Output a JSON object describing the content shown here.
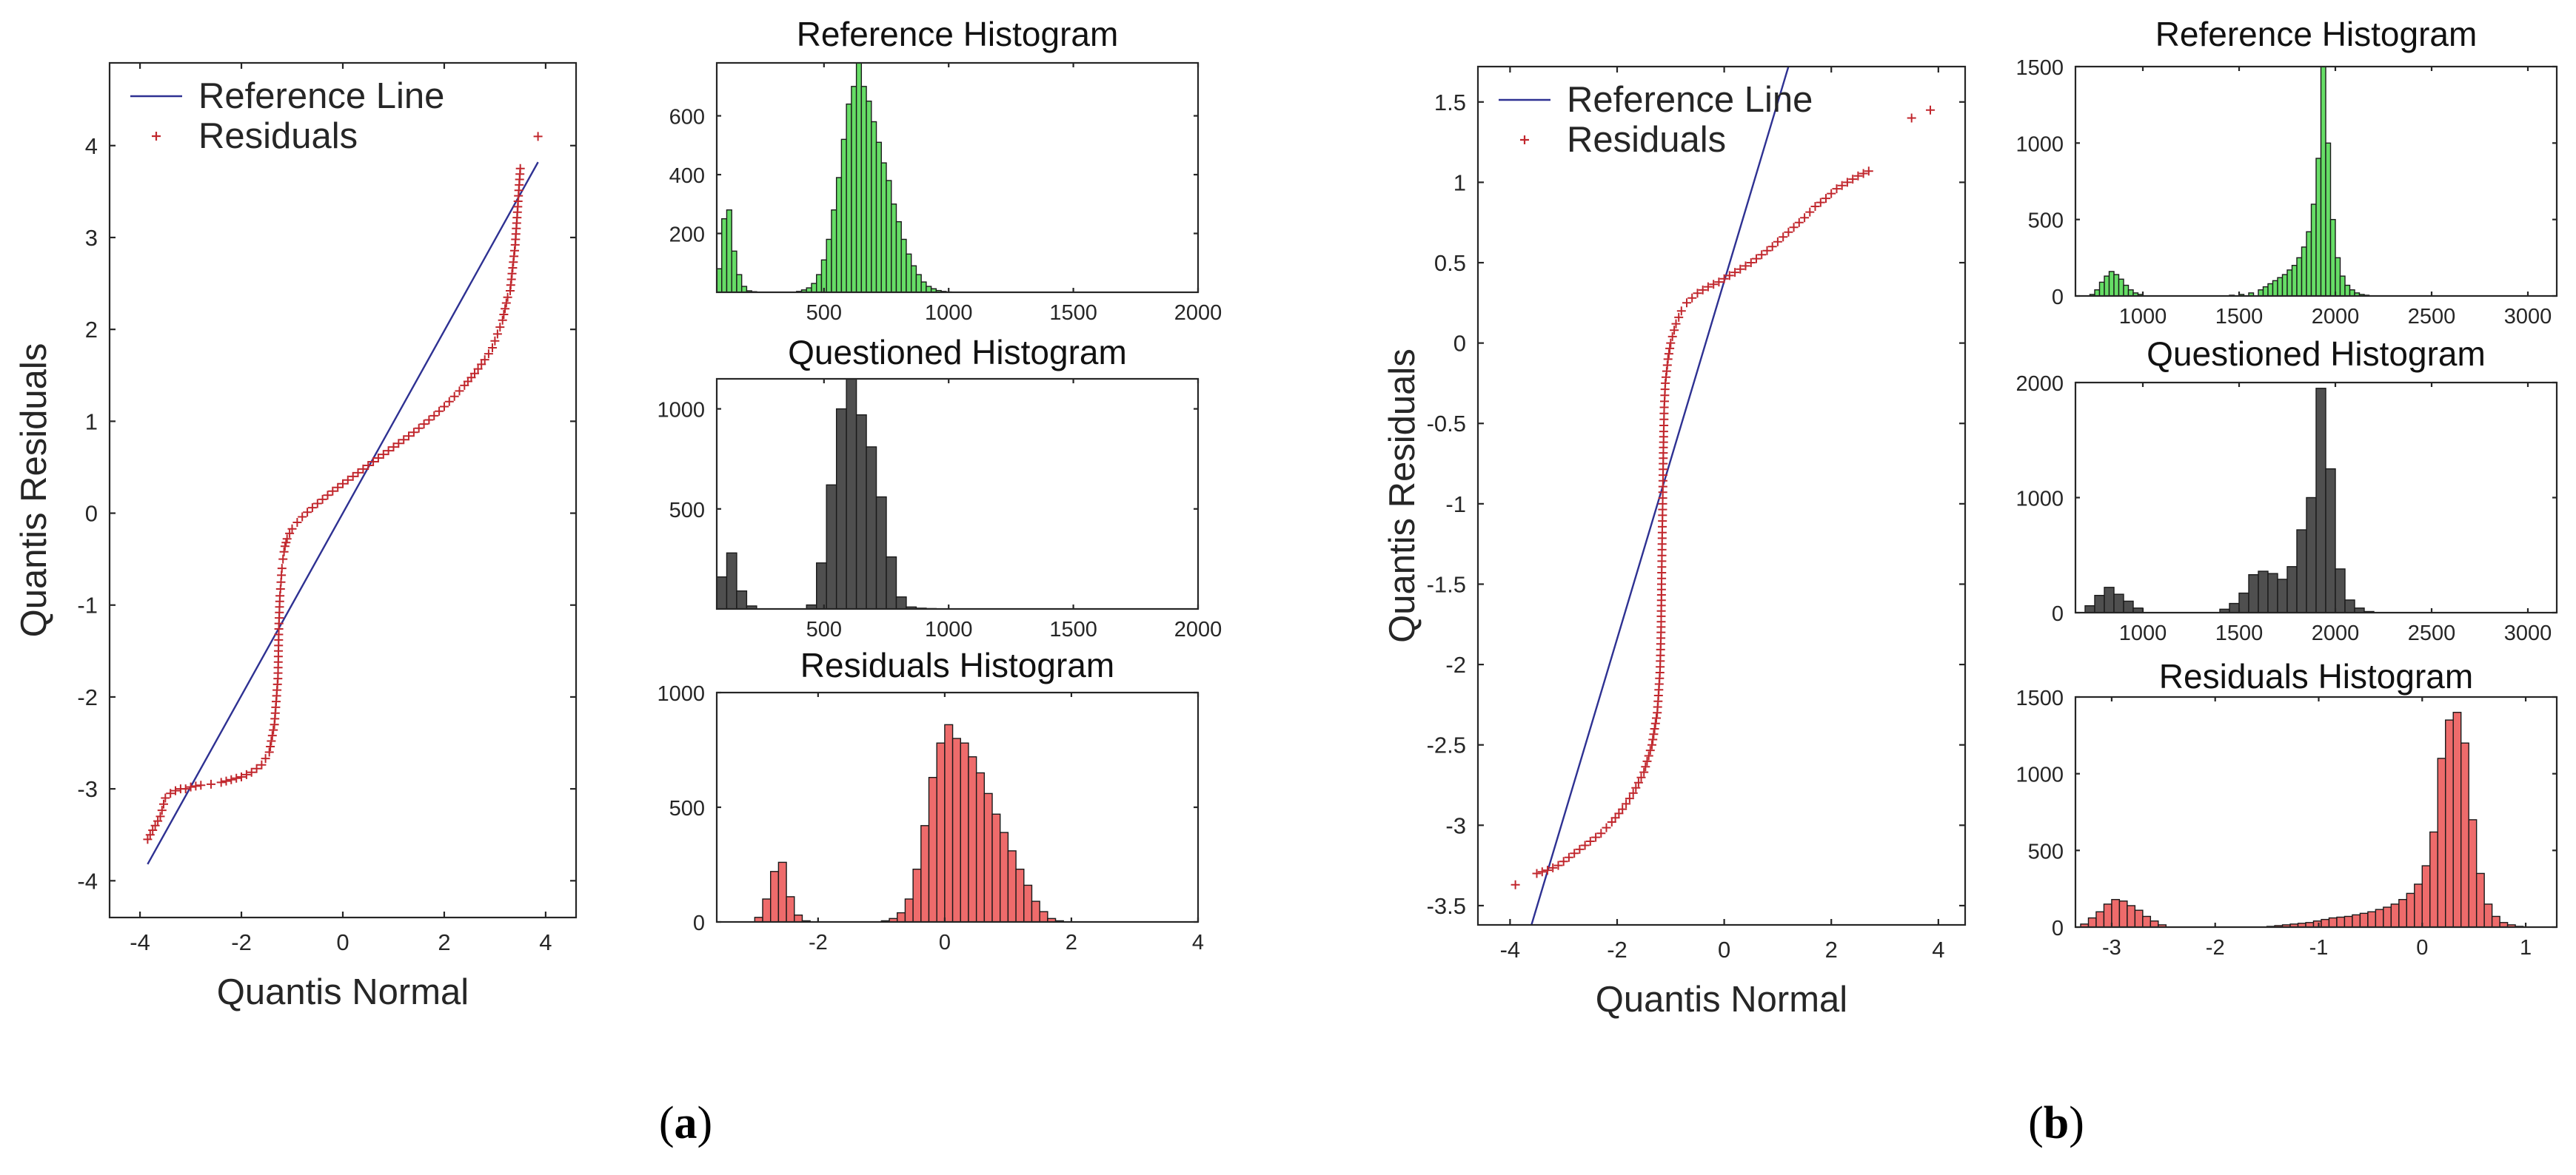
{
  "colors": {
    "reference_line": "#2e3192",
    "residual_marker": "#c1272d",
    "reference_hist": "#66dd66",
    "questioned_hist": "#4f4f4f",
    "residual_hist": "#ee6b6b",
    "bar_edge": "#1a1a1a"
  },
  "panel_labels": [
    {
      "open": "(",
      "letter": "a",
      "close": ")"
    },
    {
      "open": "(",
      "letter": "b",
      "close": ")"
    }
  ],
  "chart_data": [
    {
      "id": "a-qq",
      "type": "scatter",
      "xlabel": "Quantis Normal",
      "ylabel": "Quantis Residuals",
      "xlim": [
        -4.6,
        4.6
      ],
      "ylim": [
        -4.4,
        4.9
      ],
      "xticks": [
        -4,
        -2,
        0,
        2,
        4
      ],
      "yticks": [
        -4,
        -3,
        -2,
        -1,
        0,
        1,
        2,
        3,
        4
      ],
      "legend": {
        "position": "top-left",
        "entries": [
          "Reference Line",
          "Residuals"
        ]
      },
      "reference_line": {
        "x": [
          -3.85,
          3.85
        ],
        "y": [
          -3.82,
          3.82
        ]
      },
      "residuals": {
        "x": [
          -3.85,
          -3.6,
          -3.5,
          -3.4,
          -3.3,
          -3.2,
          -3.1,
          -3.0,
          -2.9,
          -2.8,
          -2.6,
          -2.4,
          -2.2,
          -2.0,
          -1.8,
          -1.6,
          -1.45,
          -1.35,
          -1.28,
          -1.26,
          -1.24,
          -1.22,
          -1.2,
          -1.18,
          -1.16,
          -1.14,
          -1.12,
          -1.1,
          -1.05,
          -1.0,
          -0.9,
          -0.8,
          -0.6,
          -0.4,
          -0.2,
          0.0,
          0.2,
          0.4,
          0.6,
          0.8,
          1.0,
          1.2,
          1.4,
          1.6,
          1.8,
          2.0,
          2.2,
          2.4,
          2.6,
          2.8,
          2.95,
          3.05,
          3.15,
          3.25,
          3.3,
          3.4,
          3.5,
          3.85
        ],
        "y": [
          -3.55,
          -3.3,
          -3.1,
          -3.05,
          -3.02,
          -3.0,
          -3.0,
          -2.98,
          -2.97,
          -2.96,
          -2.95,
          -2.93,
          -2.9,
          -2.87,
          -2.82,
          -2.74,
          -2.6,
          -2.3,
          -1.8,
          -1.2,
          -0.9,
          -0.75,
          -0.6,
          -0.5,
          -0.42,
          -0.36,
          -0.32,
          -0.28,
          -0.22,
          -0.17,
          -0.1,
          -0.04,
          0.06,
          0.15,
          0.24,
          0.32,
          0.4,
          0.48,
          0.56,
          0.64,
          0.72,
          0.8,
          0.88,
          0.97,
          1.06,
          1.16,
          1.27,
          1.39,
          1.52,
          1.67,
          1.8,
          1.95,
          2.1,
          2.35,
          2.42,
          2.92,
          3.75,
          4.1
        ]
      }
    },
    {
      "id": "a-ref-hist",
      "type": "bar",
      "title": "Reference Histogram",
      "xlim": [
        70,
        2000
      ],
      "ylim": [
        0,
        780
      ],
      "xticks": [
        500,
        1000,
        1500,
        2000
      ],
      "yticks": [
        200,
        400,
        600
      ],
      "bin_width": 20,
      "bins": [
        70,
        90,
        110,
        130,
        150,
        170,
        190,
        210,
        390,
        410,
        430,
        450,
        470,
        490,
        510,
        530,
        550,
        570,
        590,
        610,
        630,
        650,
        670,
        690,
        710,
        730,
        750,
        770,
        790,
        810,
        830,
        850,
        870,
        890,
        910,
        930,
        950,
        970,
        990
      ],
      "values": [
        80,
        250,
        280,
        140,
        60,
        20,
        5,
        2,
        3,
        8,
        15,
        30,
        60,
        110,
        180,
        280,
        390,
        520,
        640,
        700,
        780,
        700,
        650,
        580,
        510,
        440,
        380,
        300,
        240,
        180,
        130,
        90,
        60,
        35,
        20,
        12,
        6,
        3,
        1
      ],
      "color_key": "reference_hist"
    },
    {
      "id": "a-q-hist",
      "type": "bar",
      "title": "Questioned Histogram",
      "xlim": [
        70,
        2000
      ],
      "ylim": [
        0,
        1150
      ],
      "xticks": [
        500,
        1000,
        1500,
        2000
      ],
      "yticks": [
        500,
        1000
      ],
      "bin_width": 40,
      "bins": [
        70,
        110,
        150,
        190,
        430,
        470,
        510,
        550,
        590,
        630,
        670,
        710,
        750,
        790,
        830,
        870,
        910
      ],
      "values": [
        160,
        280,
        90,
        15,
        20,
        230,
        620,
        1000,
        1150,
        970,
        810,
        560,
        260,
        60,
        10,
        4,
        2
      ],
      "color_key": "questioned_hist"
    },
    {
      "id": "a-res-hist",
      "type": "bar",
      "title": "Residuals Histogram",
      "xlim": [
        -3.6,
        4.0
      ],
      "ylim": [
        0,
        1000
      ],
      "xticks": [
        -2,
        0,
        2,
        4
      ],
      "yticks": [
        0,
        500,
        1000
      ],
      "bin_width": 0.125,
      "bins": [
        -3.0,
        -2.875,
        -2.75,
        -2.625,
        -2.5,
        -2.375,
        -2.25,
        -1.0,
        -0.875,
        -0.75,
        -0.625,
        -0.5,
        -0.375,
        -0.25,
        -0.125,
        0.0,
        0.125,
        0.25,
        0.375,
        0.5,
        0.625,
        0.75,
        0.875,
        1.0,
        1.125,
        1.25,
        1.375,
        1.5,
        1.625,
        1.75
      ],
      "values": [
        20,
        100,
        220,
        260,
        110,
        30,
        5,
        5,
        15,
        40,
        100,
        230,
        420,
        630,
        780,
        860,
        800,
        780,
        720,
        650,
        560,
        470,
        390,
        310,
        230,
        160,
        90,
        45,
        15,
        5
      ],
      "color_key": "residual_hist"
    },
    {
      "id": "b-qq",
      "type": "scatter",
      "xlabel": "Quantis Normal",
      "ylabel": "Quantis Residuals",
      "xlim": [
        -4.6,
        4.5
      ],
      "ylim": [
        -3.62,
        1.72
      ],
      "xticks": [
        -4,
        -2,
        0,
        2,
        4
      ],
      "yticks": [
        -3.5,
        -3,
        -2.5,
        -2,
        -1.5,
        -1,
        -0.5,
        0,
        0.5,
        1,
        1.5
      ],
      "legend": {
        "position": "top-left",
        "entries": [
          "Reference Line",
          "Residuals"
        ]
      },
      "reference_line": {
        "x": [
          -3.6,
          1.2
        ],
        "y": [
          -3.62,
          1.72
        ]
      },
      "residuals": {
        "x": [
          -3.9,
          -3.5,
          -3.3,
          -3.1,
          -2.9,
          -2.7,
          -2.5,
          -2.3,
          -2.1,
          -1.9,
          -1.7,
          -1.5,
          -1.35,
          -1.25,
          -1.2,
          -1.18,
          -1.17,
          -1.16,
          -1.15,
          -1.14,
          -1.13,
          -1.12,
          -1.1,
          -1.05,
          -1.0,
          -0.9,
          -0.8,
          -0.7,
          -0.6,
          -0.5,
          -0.3,
          -0.1,
          0.1,
          0.3,
          0.5,
          0.7,
          0.9,
          1.1,
          1.3,
          1.5,
          1.7,
          1.9,
          2.1,
          2.3,
          2.5,
          2.7,
          3.5,
          3.85
        ],
        "y": [
          -3.37,
          -3.3,
          -3.28,
          -3.25,
          -3.2,
          -3.15,
          -3.1,
          -3.05,
          -2.98,
          -2.9,
          -2.8,
          -2.67,
          -2.5,
          -2.3,
          -2.05,
          -1.8,
          -1.5,
          -1.25,
          -1.0,
          -0.75,
          -0.55,
          -0.4,
          -0.25,
          -0.1,
          0.0,
          0.12,
          0.2,
          0.25,
          0.28,
          0.31,
          0.35,
          0.38,
          0.42,
          0.46,
          0.5,
          0.55,
          0.6,
          0.66,
          0.72,
          0.78,
          0.85,
          0.9,
          0.96,
          1.0,
          1.04,
          1.07,
          1.4,
          1.45
        ]
      }
    },
    {
      "id": "b-ref-hist",
      "type": "bar",
      "title": "Reference Histogram",
      "xlim": [
        650,
        3150
      ],
      "ylim": [
        0,
        1500
      ],
      "xticks": [
        1000,
        1500,
        2000,
        2500,
        3000
      ],
      "yticks": [
        0,
        500,
        1000,
        1500
      ],
      "bin_width": 25,
      "bins": [
        725,
        750,
        775,
        800,
        825,
        850,
        875,
        900,
        925,
        950,
        975,
        1450,
        1500,
        1550,
        1600,
        1625,
        1650,
        1675,
        1700,
        1725,
        1750,
        1775,
        1800,
        1825,
        1850,
        1875,
        1900,
        1925,
        1950,
        1975,
        2000,
        2025,
        2050,
        2075,
        2100,
        2125,
        2150
      ],
      "values": [
        10,
        40,
        90,
        130,
        160,
        140,
        110,
        70,
        40,
        20,
        10,
        5,
        10,
        20,
        40,
        60,
        80,
        100,
        120,
        140,
        170,
        200,
        250,
        320,
        420,
        600,
        900,
        1500,
        1000,
        500,
        250,
        130,
        70,
        40,
        20,
        10,
        5
      ],
      "color_key": "reference_hist"
    },
    {
      "id": "b-q-hist",
      "type": "bar",
      "title": "Questioned Histogram",
      "xlim": [
        650,
        3150
      ],
      "ylim": [
        0,
        2000
      ],
      "xticks": [
        1000,
        1500,
        2000,
        2500,
        3000
      ],
      "yticks": [
        0,
        1000,
        2000
      ],
      "bin_width": 50,
      "bins": [
        700,
        750,
        800,
        850,
        900,
        950,
        1400,
        1450,
        1500,
        1550,
        1600,
        1650,
        1700,
        1750,
        1800,
        1850,
        1900,
        1950,
        2000,
        2050,
        2100,
        2150
      ],
      "values": [
        60,
        150,
        220,
        160,
        100,
        40,
        30,
        80,
        170,
        330,
        360,
        340,
        290,
        400,
        720,
        1000,
        1950,
        1250,
        380,
        110,
        40,
        10
      ],
      "color_key": "questioned_hist"
    },
    {
      "id": "b-res-hist",
      "type": "bar",
      "title": "Residuals Histogram",
      "xlim": [
        -3.35,
        1.3
      ],
      "ylim": [
        0,
        1500
      ],
      "xticks": [
        -3,
        -2,
        -1,
        0,
        1
      ],
      "yticks": [
        0,
        500,
        1000,
        1500
      ],
      "bin_width": 0.075,
      "bins": [
        -3.3,
        -3.225,
        -3.15,
        -3.075,
        -3.0,
        -2.925,
        -2.85,
        -2.775,
        -2.7,
        -2.625,
        -2.55,
        -1.5,
        -1.425,
        -1.35,
        -1.275,
        -1.2,
        -1.125,
        -1.05,
        -0.975,
        -0.9,
        -0.825,
        -0.75,
        -0.675,
        -0.6,
        -0.525,
        -0.45,
        -0.375,
        -0.3,
        -0.225,
        -0.15,
        -0.075,
        0.0,
        0.075,
        0.15,
        0.225,
        0.3,
        0.375,
        0.45,
        0.525,
        0.6,
        0.675,
        0.75,
        0.825,
        0.9
      ],
      "values": [
        20,
        60,
        100,
        150,
        180,
        170,
        140,
        110,
        70,
        40,
        15,
        5,
        10,
        15,
        20,
        25,
        30,
        40,
        50,
        60,
        65,
        70,
        80,
        90,
        100,
        115,
        130,
        150,
        180,
        220,
        280,
        400,
        620,
        1100,
        1350,
        1400,
        1200,
        700,
        350,
        150,
        70,
        30,
        15,
        5
      ],
      "color_key": "residual_hist"
    }
  ]
}
